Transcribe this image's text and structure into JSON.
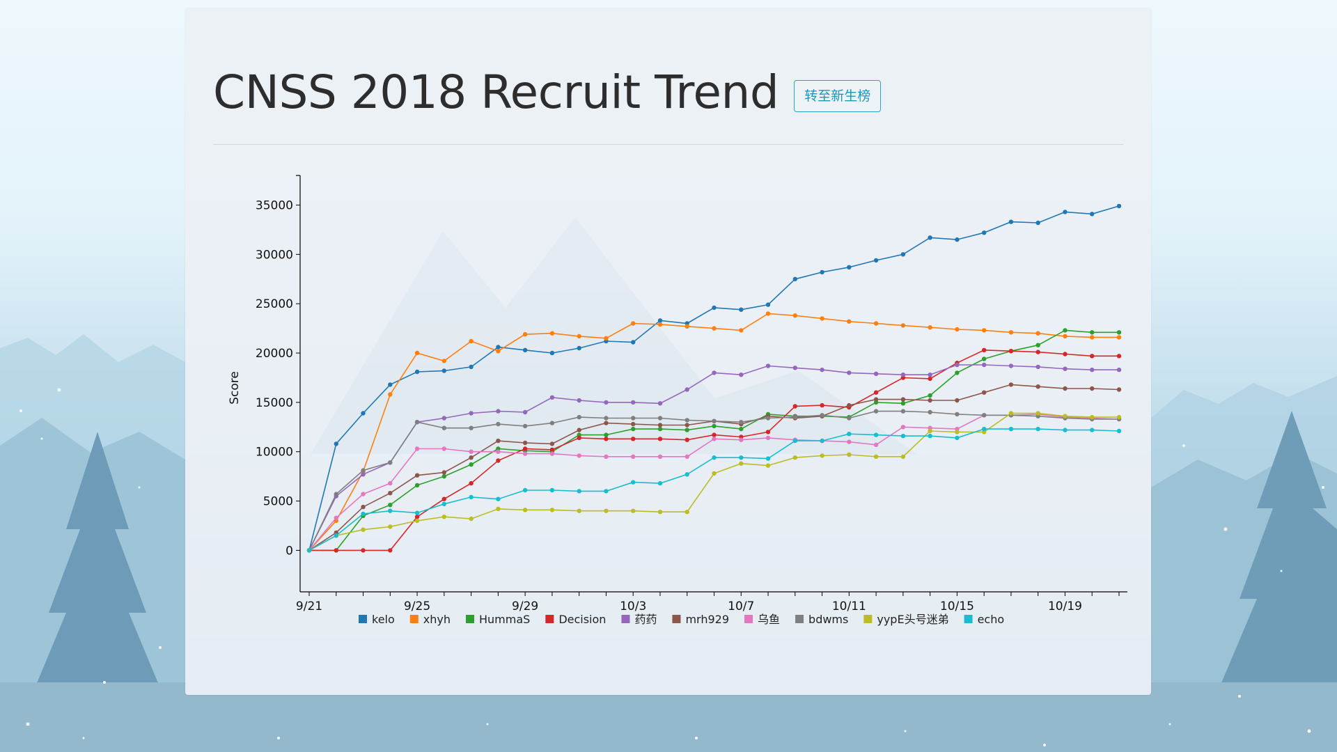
{
  "page": {
    "title": "CNSS 2018 Recruit Trend",
    "switch_button": "转至新生榜"
  },
  "chart_data": {
    "type": "line",
    "title": "",
    "xlabel": "",
    "ylabel": "Score",
    "ylim": [
      -3500,
      38000
    ],
    "x": [
      "9/21",
      "9/22",
      "9/23",
      "9/24",
      "9/25",
      "9/26",
      "9/27",
      "9/28",
      "9/29",
      "9/30",
      "10/1",
      "10/2",
      "10/3",
      "10/4",
      "10/5",
      "10/6",
      "10/7",
      "10/8",
      "10/9",
      "10/10",
      "10/11",
      "10/12",
      "10/13",
      "10/14",
      "10/15",
      "10/16",
      "10/17",
      "10/18",
      "10/19",
      "10/20",
      "10/21"
    ],
    "x_tick_labels": [
      "9/21",
      "9/25",
      "9/29",
      "10/3",
      "10/7",
      "10/11",
      "10/15",
      "10/19"
    ],
    "y_ticks": [
      0,
      5000,
      10000,
      15000,
      20000,
      25000,
      30000,
      35000
    ],
    "grid": false,
    "legend_position": "bottom",
    "series": [
      {
        "name": "kelo",
        "color": "#1f77b4",
        "values": [
          0,
          10800,
          13900,
          16800,
          18100,
          18200,
          18600,
          20600,
          20300,
          20000,
          20500,
          21200,
          21100,
          23300,
          23000,
          24600,
          24400,
          24900,
          27500,
          28200,
          28700,
          29400,
          30000,
          31700,
          31500,
          32200,
          33300,
          33200,
          34300,
          34100,
          34900
        ]
      },
      {
        "name": "xhyh",
        "color": "#ff7f0e",
        "values": [
          0,
          3000,
          8000,
          15800,
          20000,
          19200,
          21200,
          20200,
          21900,
          22000,
          21700,
          21500,
          23000,
          22900,
          22700,
          22500,
          22300,
          24000,
          23800,
          23500,
          23200,
          23000,
          22800,
          22600,
          22400,
          22300,
          22100,
          22000,
          21700,
          21600,
          21600
        ]
      },
      {
        "name": "HummaS",
        "color": "#2ca02c",
        "values": [
          0,
          0,
          3500,
          4600,
          6600,
          7500,
          8700,
          10300,
          10100,
          10000,
          11700,
          11700,
          12300,
          12300,
          12200,
          12600,
          12300,
          13800,
          13600,
          13600,
          13500,
          15000,
          14900,
          15700,
          18000,
          19400,
          20200,
          20800,
          22300,
          22100,
          22100
        ]
      },
      {
        "name": "Decision",
        "color": "#d62728",
        "values": [
          0,
          0,
          0,
          0,
          3400,
          5200,
          6800,
          9100,
          10300,
          10200,
          11400,
          11300,
          11300,
          11300,
          11200,
          11700,
          11500,
          12000,
          14600,
          14700,
          14500,
          16000,
          17500,
          17400,
          19000,
          20300,
          20200,
          20100,
          19900,
          19700,
          19700
        ]
      },
      {
        "name": "药药",
        "color": "#9467bd",
        "values": [
          0,
          5500,
          7700,
          8900,
          13000,
          13400,
          13900,
          14100,
          14000,
          15500,
          15200,
          15000,
          15000,
          14900,
          16300,
          18000,
          17800,
          18700,
          18500,
          18300,
          18000,
          17900,
          17800,
          17800,
          18800,
          18800,
          18700,
          18600,
          18400,
          18300,
          18300
        ]
      },
      {
        "name": "mrh929",
        "color": "#8c564b",
        "values": [
          0,
          1800,
          4400,
          5800,
          7600,
          7900,
          9400,
          11100,
          10900,
          10800,
          12200,
          12900,
          12800,
          12700,
          12700,
          13100,
          12800,
          13600,
          13400,
          13600,
          14700,
          15300,
          15300,
          15200,
          15200,
          16000,
          16800,
          16600,
          16400,
          16400,
          16300
        ]
      },
      {
        "name": "乌鱼",
        "color": "#e377c2",
        "values": [
          0,
          3300,
          5700,
          6800,
          10300,
          10300,
          10000,
          10000,
          9800,
          9800,
          9600,
          9500,
          9500,
          9500,
          9500,
          11300,
          11200,
          11400,
          11200,
          11100,
          11000,
          10700,
          12500,
          12400,
          12300,
          13700,
          13700,
          13800,
          13500,
          13400,
          13300
        ]
      },
      {
        "name": "bdwms",
        "color": "#7f7f7f",
        "values": [
          0,
          5700,
          8100,
          8900,
          13000,
          12400,
          12400,
          12800,
          12600,
          12900,
          13500,
          13400,
          13400,
          13400,
          13200,
          13100,
          13000,
          13400,
          13500,
          13700,
          13400,
          14100,
          14100,
          14000,
          13800,
          13700,
          13700,
          13600,
          13400,
          13300,
          13300
        ]
      },
      {
        "name": "yypE头号迷弟",
        "color": "#bcbd22",
        "values": [
          0,
          1500,
          2100,
          2400,
          3000,
          3400,
          3200,
          4200,
          4100,
          4100,
          4000,
          4000,
          4000,
          3900,
          3900,
          7800,
          8800,
          8600,
          9400,
          9600,
          9700,
          9500,
          9500,
          12100,
          12000,
          12000,
          13900,
          13900,
          13600,
          13500,
          13500
        ]
      },
      {
        "name": "echo",
        "color": "#17becf",
        "values": [
          0,
          1500,
          3700,
          4000,
          3800,
          4700,
          5400,
          5200,
          6100,
          6100,
          6000,
          6000,
          6900,
          6800,
          7700,
          9400,
          9400,
          9300,
          11100,
          11100,
          11800,
          11700,
          11600,
          11600,
          11400,
          12300,
          12300,
          12300,
          12200,
          12200,
          12100
        ]
      }
    ]
  }
}
